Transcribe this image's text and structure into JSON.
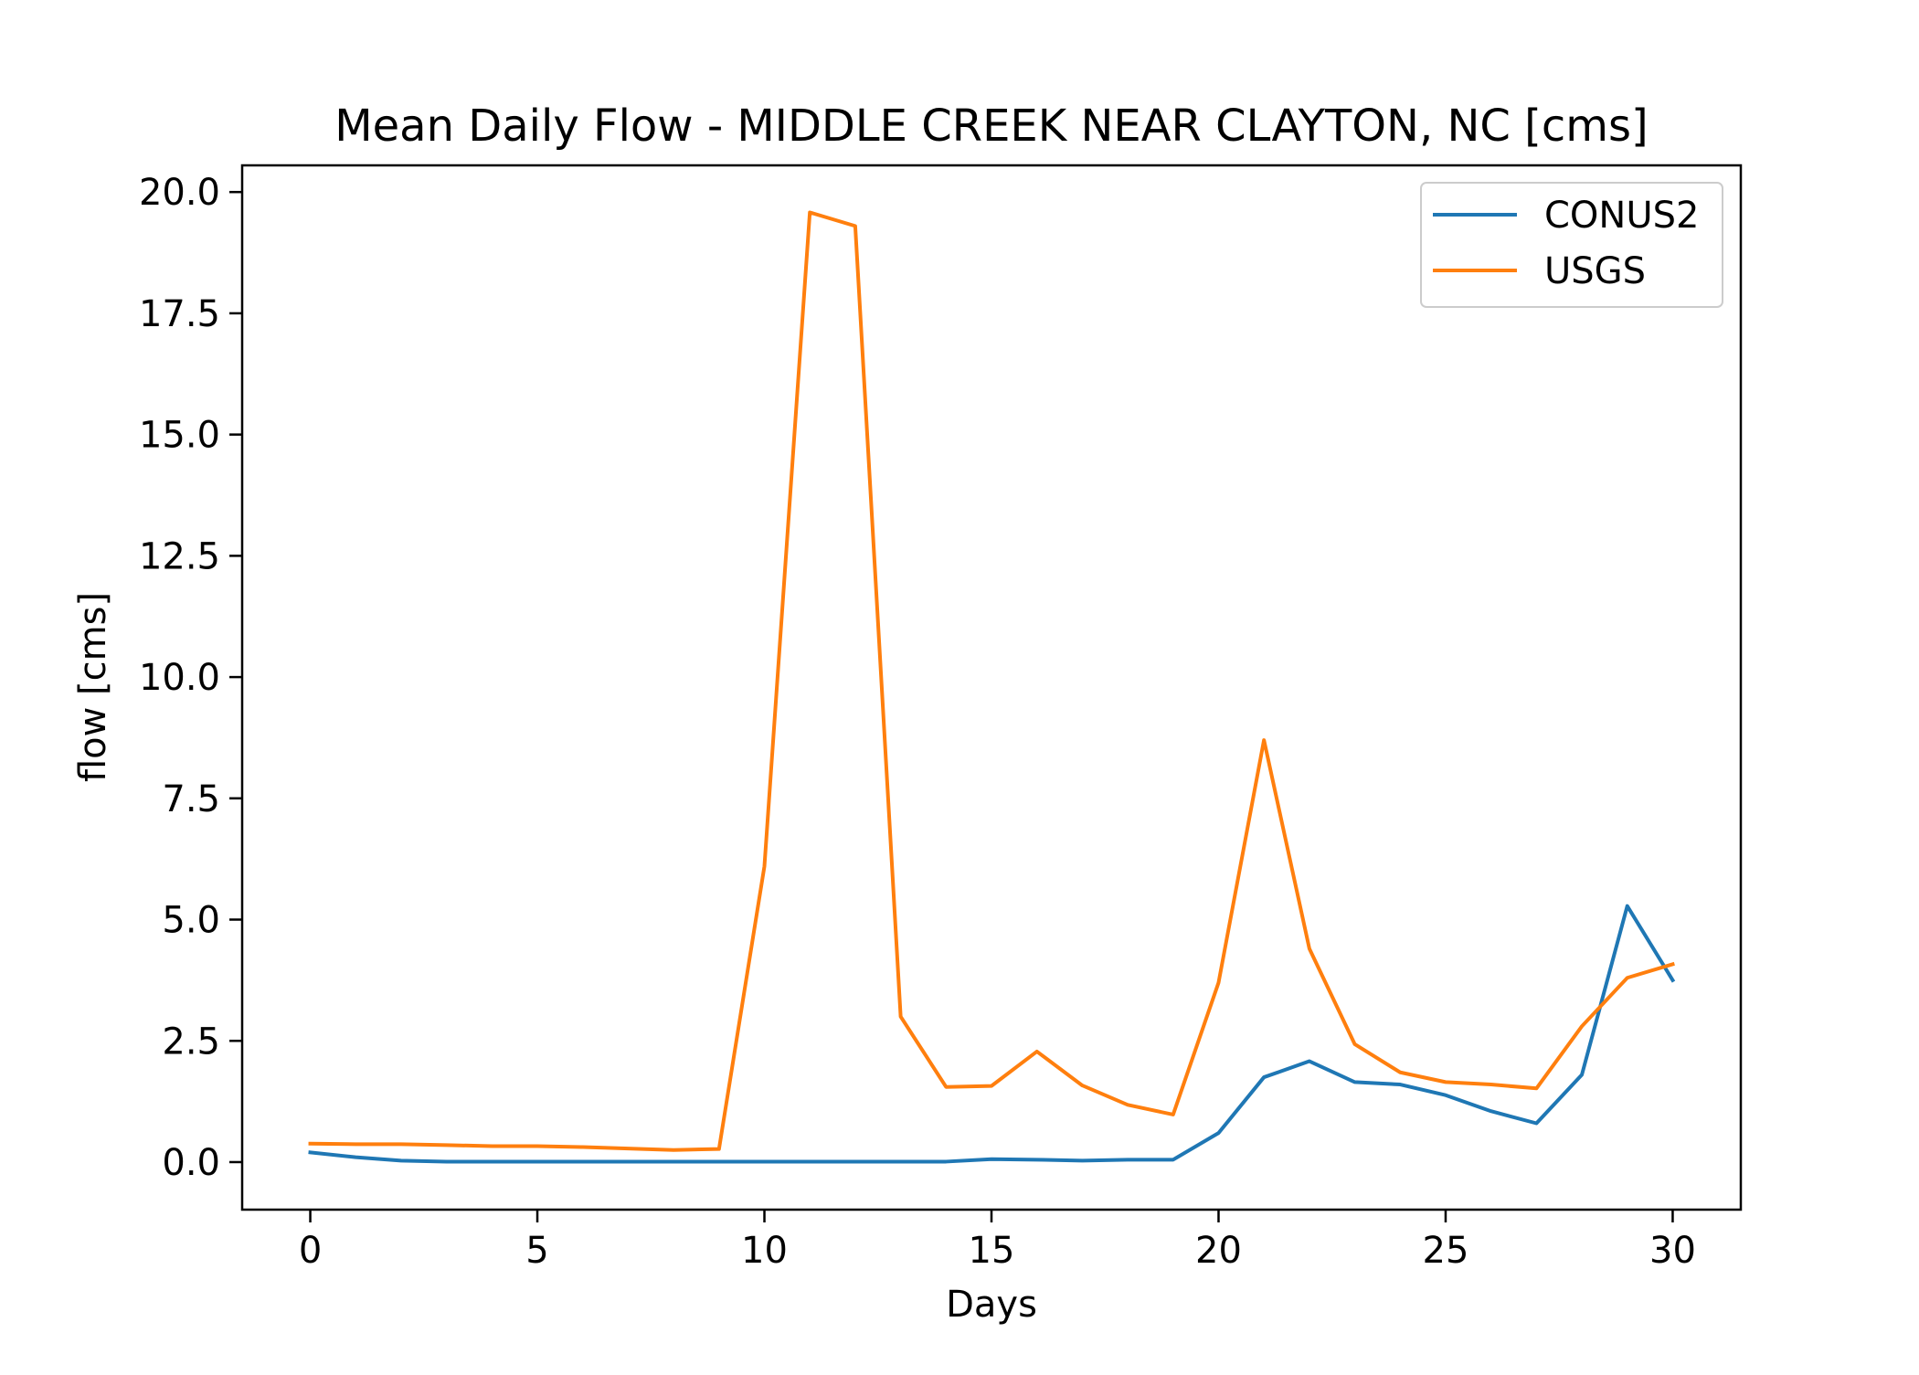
{
  "chart_data": {
    "type": "line",
    "title": "Mean Daily Flow - MIDDLE CREEK NEAR CLAYTON, NC [cms]",
    "xlabel": "Days",
    "ylabel": "flow [cms]",
    "xlim": [
      -1.5,
      31.5
    ],
    "ylim": [
      -0.98,
      20.55
    ],
    "xticks": [
      0,
      5,
      10,
      15,
      20,
      25,
      30
    ],
    "xtick_labels": [
      "0",
      "5",
      "10",
      "15",
      "20",
      "25",
      "30"
    ],
    "yticks": [
      0,
      2.5,
      5,
      7.5,
      10,
      12.5,
      15,
      17.5,
      20
    ],
    "ytick_labels": [
      "0.0",
      "2.5",
      "5.0",
      "7.5",
      "10.0",
      "12.5",
      "15.0",
      "17.5",
      "20.0"
    ],
    "grid": false,
    "legend_position": "top-right",
    "x": [
      0,
      1,
      2,
      3,
      4,
      5,
      6,
      7,
      8,
      9,
      10,
      11,
      12,
      13,
      14,
      15,
      16,
      17,
      18,
      19,
      20,
      21,
      22,
      23,
      24,
      25,
      26,
      27,
      28,
      29,
      30
    ],
    "series": [
      {
        "name": "CONUS2",
        "color": "#1f77b4",
        "values": [
          0.2,
          0.1,
          0.03,
          0.01,
          0.01,
          0.01,
          0.01,
          0.01,
          0.01,
          0.01,
          0.01,
          0.01,
          0.01,
          0.01,
          0.01,
          0.06,
          0.05,
          0.03,
          0.05,
          0.05,
          0.6,
          1.75,
          2.08,
          1.65,
          1.6,
          1.38,
          1.05,
          0.8,
          1.8,
          5.28,
          3.75
        ]
      },
      {
        "name": "USGS",
        "color": "#ff7f0e",
        "values": [
          0.38,
          0.37,
          0.37,
          0.35,
          0.33,
          0.33,
          0.31,
          0.28,
          0.25,
          0.27,
          6.1,
          19.58,
          19.3,
          3.0,
          1.55,
          1.57,
          2.28,
          1.58,
          1.18,
          0.98,
          3.7,
          8.7,
          4.4,
          2.43,
          1.85,
          1.65,
          1.6,
          1.52,
          2.8,
          3.8,
          4.08
        ]
      }
    ]
  }
}
